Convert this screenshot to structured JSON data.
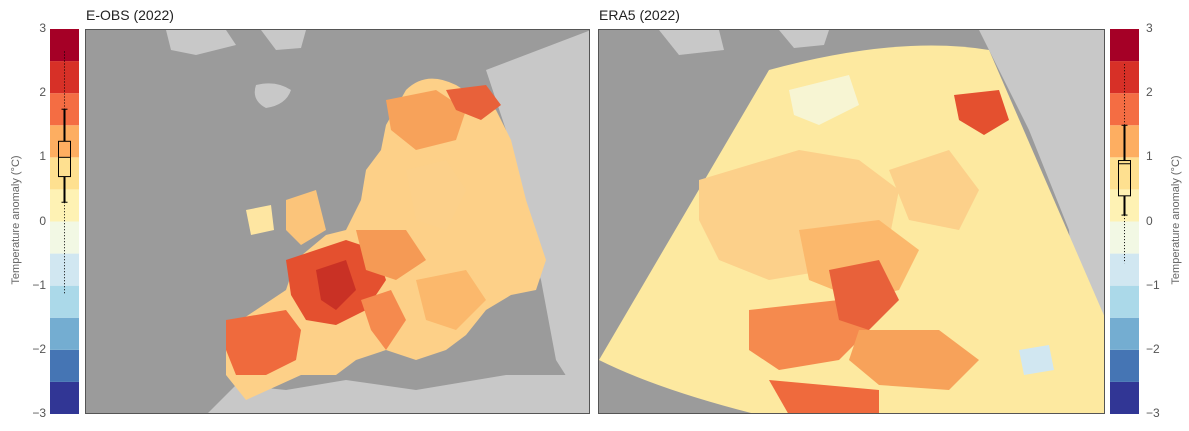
{
  "panels": {
    "left_title": "E-OBS (2022)",
    "right_title": "ERA5 (2022)"
  },
  "colorbar": {
    "label": "Temperature anomaly (°C)",
    "ticks": [
      "3",
      "2",
      "1",
      "0",
      "−1",
      "−2",
      "−3"
    ],
    "colors": [
      "#a50026",
      "#d73027",
      "#f46d43",
      "#fdae61",
      "#fee090",
      "#ffffbf",
      "#e0f3f8",
      "#abd9e9",
      "#74add1",
      "#4575b4",
      "#313695"
    ],
    "range": [
      -3,
      3
    ]
  },
  "chart_data": {
    "type": "heatmap",
    "title": "",
    "colorbar_label": "Temperature anomaly (°C)",
    "vmin": -3,
    "vmax": 3,
    "levels": [
      -3,
      -2.5,
      -2,
      -1.5,
      -1,
      -0.5,
      0,
      0.5,
      1,
      1.5,
      2,
      2.5,
      3
    ],
    "panels": [
      {
        "name": "E-OBS (2022)",
        "boxplot": {
          "median": 1.0,
          "q1": 0.7,
          "q3": 1.25,
          "whisker_low": 0.3,
          "whisker_high": 1.75,
          "min_outlier": -1.15,
          "max_outlier": 2.65
        }
      },
      {
        "name": "ERA5 (2022)",
        "boxplot": {
          "median": 0.9,
          "q1": 0.4,
          "q3": 0.95,
          "whisker_low": 0.1,
          "whisker_high": 1.5,
          "min_outlier": -0.65,
          "max_outlier": 2.45
        }
      }
    ]
  }
}
